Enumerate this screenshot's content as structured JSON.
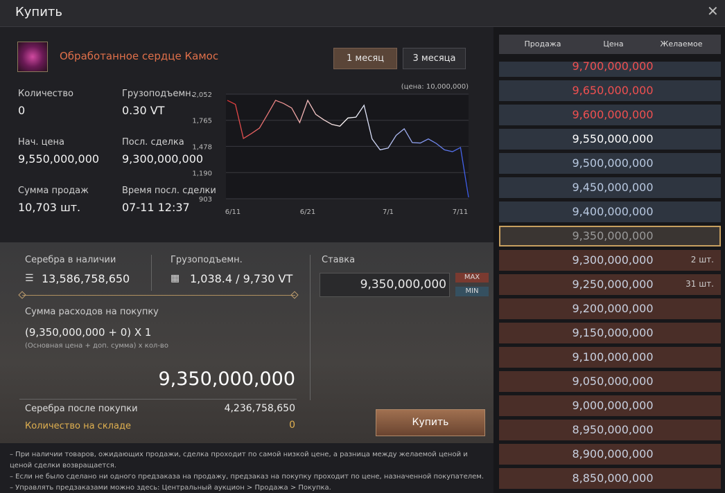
{
  "window": {
    "title": "Купить"
  },
  "item": {
    "name": "Обработанное сердце Камос",
    "tabs": [
      "1 месяц",
      "3 месяца"
    ]
  },
  "stats": [
    {
      "label": "Количество",
      "value": "0"
    },
    {
      "label": "Грузоподъемн.",
      "value": "0.30 VT"
    },
    {
      "label": "Нач. цена",
      "value": "9,550,000,000"
    },
    {
      "label": "Посл. сделка",
      "value": "9,300,000,000"
    },
    {
      "label": "Сумма продаж",
      "value": "10,703 шт."
    },
    {
      "label": "Время посл. сделки",
      "value": "07-11 12:37"
    }
  ],
  "chart_data": {
    "type": "line",
    "annotation": "(цена: 10,000,000)",
    "categories": [
      "6/11",
      null,
      null,
      null,
      null,
      null,
      null,
      null,
      null,
      null,
      "6/21",
      null,
      null,
      null,
      null,
      null,
      null,
      null,
      null,
      null,
      "7/1",
      null,
      null,
      null,
      null,
      null,
      null,
      null,
      null,
      null,
      "7/11"
    ],
    "series": [
      {
        "colors": [
          "#e03535",
          "#ffffff",
          "#3a5ae8"
        ],
        "values": [
          1984,
          1940,
          1565,
          1620,
          1680,
          1830,
          1984,
          1950,
          1900,
          1740,
          1984,
          1830,
          1770,
          1720,
          1700,
          1790,
          1800,
          1930,
          1560,
          1440,
          1460,
          1600,
          1672,
          1520,
          1515,
          1560,
          1510,
          1440,
          1420,
          1466,
          918
        ]
      }
    ],
    "ylim": [
      903,
      2052
    ],
    "yticks": [
      {
        "value": 903,
        "label": "903"
      },
      {
        "value": 1190,
        "label": "1,190"
      },
      {
        "value": 1478,
        "label": "1,478"
      },
      {
        "value": 1765,
        "label": "1,765"
      },
      {
        "value": 2052,
        "label": "2,052"
      }
    ],
    "grid": true
  },
  "purchase": {
    "silver_label": "Серебра в наличии",
    "silver": "13,586,758,650",
    "weight_label": "Грузоподъемн.",
    "weight": "1,038.4 / 9,730 VT",
    "cost_label": "Сумма расходов на покупку",
    "formula": "(9,350,000,000 + 0) X 1",
    "formula_note": "(Основная цена + доп. сумма) x кол-во",
    "total": "9,350,000,000",
    "after_label": "Серебра после покупки",
    "after": "4,236,758,650",
    "stock_label": "Количество на складе",
    "stock": "0",
    "bid_label": "Ставка",
    "bid": "9,350,000,000",
    "max": "MAX",
    "min": "MIN",
    "buy": "Купить"
  },
  "notes": [
    "– При наличии товаров, ожидающих продажи, сделка проходит по самой низкой цене, а разница между желаемой ценой и ценой сделки возвращается.",
    "– Если не было сделано ни одного предзаказа на продажу, предзаказ на покупку проходит по цене, назначенной покупателем.",
    "– Управлять предзаказами можно здесь: Центральный аукцион > Продажа > Покупка."
  ],
  "orders": {
    "headers": [
      "Продажа",
      "Цена",
      "Желаемое"
    ],
    "rows": [
      {
        "price": "9,700,000,000"
      },
      {
        "price": "9,650,000,000"
      },
      {
        "price": "9,600,000,000"
      },
      {
        "price": "9,550,000,000"
      },
      {
        "price": "9,500,000,000"
      },
      {
        "price": "9,450,000,000"
      },
      {
        "price": "9,400,000,000"
      },
      {
        "price": "9,350,000,000"
      },
      {
        "price": "9,300,000,000",
        "count": "2 шт."
      },
      {
        "price": "9,250,000,000",
        "count": "31 шт."
      },
      {
        "price": "9,200,000,000"
      },
      {
        "price": "9,150,000,000"
      },
      {
        "price": "9,100,000,000"
      },
      {
        "price": "9,050,000,000"
      },
      {
        "price": "9,000,000,000"
      },
      {
        "price": "8,950,000,000"
      },
      {
        "price": "8,900,000,000"
      },
      {
        "price": "8,850,000,000"
      }
    ]
  }
}
